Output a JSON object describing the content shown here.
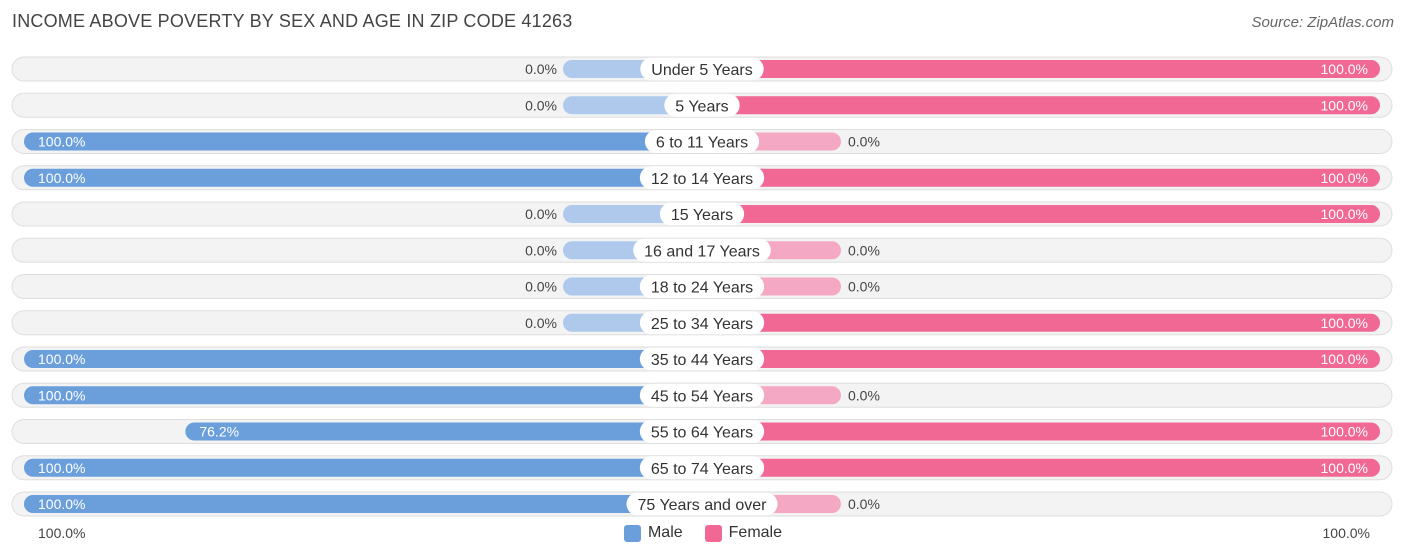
{
  "header": {
    "title": "INCOME ABOVE POVERTY BY SEX AND AGE IN ZIP CODE 41263",
    "source": "Source: ZipAtlas.com"
  },
  "axis": {
    "left_label": "100.0%",
    "right_label": "100.0%"
  },
  "legend": {
    "male_label": "Male",
    "female_label": "Female"
  },
  "colors": {
    "male_strong": "#6a9fdc",
    "male_light": "#aec9ec",
    "female_strong": "#f06893",
    "female_light": "#f5a8c3",
    "row_bg": "#f3f3f3",
    "row_border": "#dedede"
  },
  "chart_data": {
    "type": "bar",
    "orientation": "horizontal-diverging",
    "categories": [
      "Under 5 Years",
      "5 Years",
      "6 to 11 Years",
      "12 to 14 Years",
      "15 Years",
      "16 and 17 Years",
      "18 to 24 Years",
      "25 to 34 Years",
      "35 to 44 Years",
      "45 to 54 Years",
      "55 to 64 Years",
      "65 to 74 Years",
      "75 Years and over"
    ],
    "series": [
      {
        "name": "Male",
        "values": [
          0.0,
          0.0,
          100.0,
          100.0,
          0.0,
          0.0,
          0.0,
          0.0,
          100.0,
          100.0,
          76.2,
          100.0,
          100.0
        ],
        "labels": [
          "0.0%",
          "0.0%",
          "100.0%",
          "100.0%",
          "0.0%",
          "0.0%",
          "0.0%",
          "0.0%",
          "100.0%",
          "100.0%",
          "76.2%",
          "100.0%",
          "100.0%"
        ]
      },
      {
        "name": "Female",
        "values": [
          100.0,
          100.0,
          0.0,
          100.0,
          100.0,
          0.0,
          0.0,
          100.0,
          100.0,
          0.0,
          100.0,
          100.0,
          0.0
        ],
        "labels": [
          "100.0%",
          "100.0%",
          "0.0%",
          "100.0%",
          "100.0%",
          "0.0%",
          "0.0%",
          "100.0%",
          "100.0%",
          "0.0%",
          "100.0%",
          "100.0%",
          "0.0%"
        ]
      }
    ],
    "xlim": [
      0,
      100
    ],
    "legend_position": "bottom-center"
  }
}
